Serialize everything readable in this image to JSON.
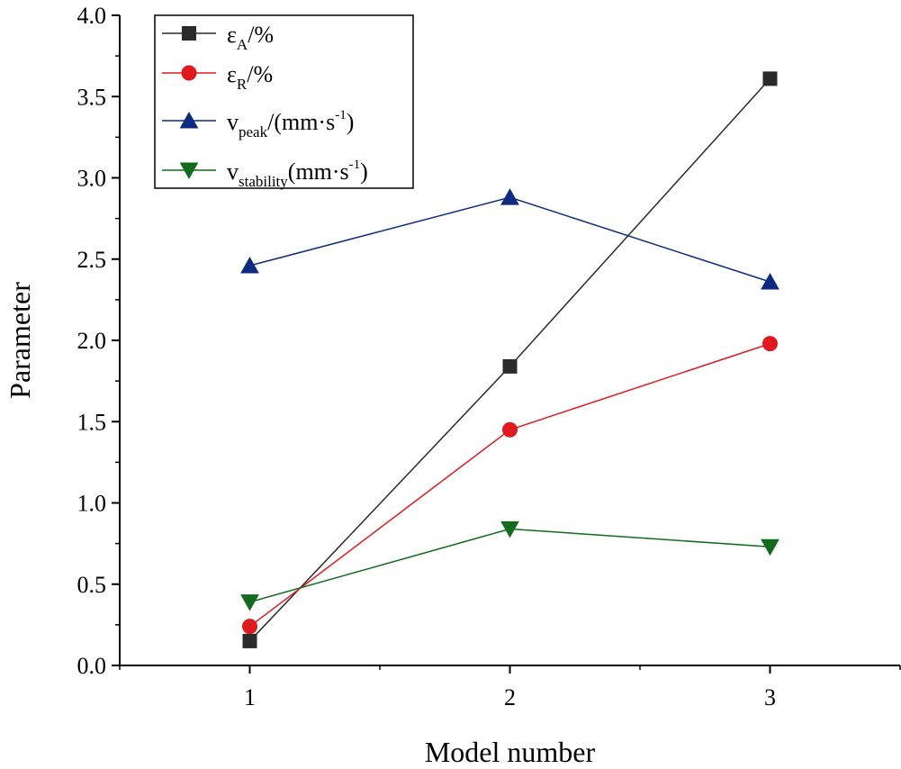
{
  "chart_data": {
    "type": "line",
    "xlabel": "Model number",
    "ylabel": "Parameter",
    "x": [
      1,
      2,
      3
    ],
    "xlim": [
      0.5,
      3.5
    ],
    "ylim": [
      0,
      4
    ],
    "xticks": [
      "1",
      "2",
      "3"
    ],
    "yticks": [
      "0.0",
      "0.5",
      "1.0",
      "1.5",
      "2.0",
      "2.5",
      "3.0",
      "3.5",
      "4.0"
    ],
    "legend_position": "top-left",
    "series": [
      {
        "id": "eA",
        "name": "εA/%",
        "label": {
          "main": "ε",
          "sub": "A",
          "rest": "/%",
          "sup": "",
          "end": ""
        },
        "color": "#2b2b2b",
        "marker": "square",
        "values": [
          0.15,
          1.84,
          3.61
        ]
      },
      {
        "id": "eR",
        "name": "εR/%",
        "label": {
          "main": "ε",
          "sub": "R",
          "rest": "/%",
          "sup": "",
          "end": ""
        },
        "color": "#e0191e",
        "marker": "circle",
        "values": [
          0.24,
          1.45,
          1.98
        ]
      },
      {
        "id": "vpeak",
        "name": "vpeak/(mm·s-1)",
        "label": {
          "main": "v",
          "sub": "peak",
          "rest": "/(mm·s",
          "sup": "-1",
          "end": ")"
        },
        "color": "#0d2b80",
        "marker": "triangle-up",
        "values": [
          2.46,
          2.88,
          2.36
        ]
      },
      {
        "id": "vstab",
        "name": "vstability(mm·s-1)",
        "label": {
          "main": "v",
          "sub": "stability",
          "rest": "(mm·s",
          "sup": "-1",
          "end": ")"
        },
        "color": "#146b1e",
        "marker": "triangle-down",
        "values": [
          0.39,
          0.84,
          0.73
        ]
      }
    ]
  }
}
